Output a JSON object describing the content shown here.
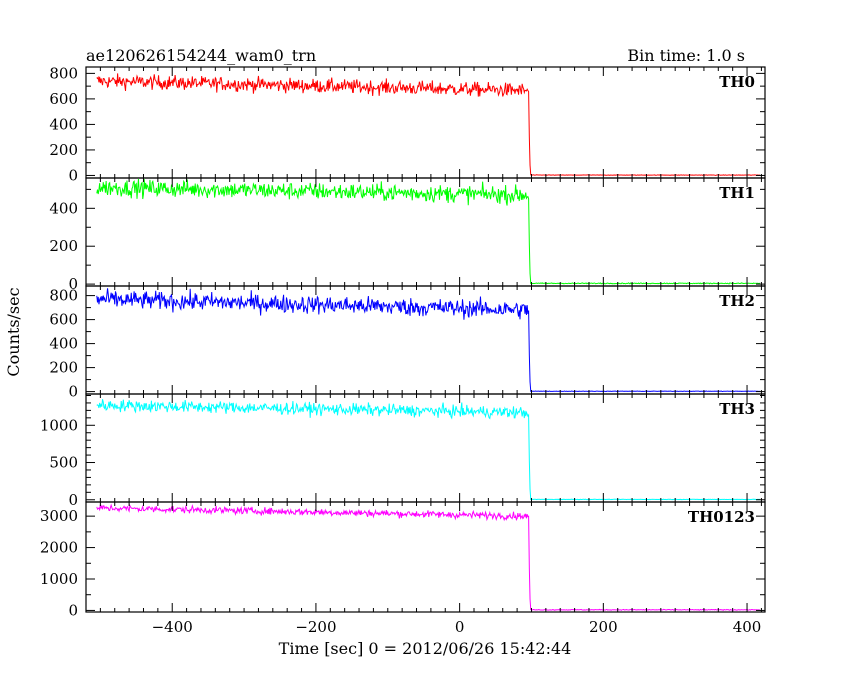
{
  "header": {
    "title": "ae120626154244_wam0_trn",
    "bin_time": "Bin time: 1.0 s"
  },
  "chart_data": {
    "type": "line",
    "xlabel": "Time [sec] 0 = 2012/06/26 15:42:44",
    "ylabel": "Counts/sec",
    "xlim": [
      -520,
      425
    ],
    "x_ticks": [
      -400,
      -200,
      0,
      200,
      400
    ],
    "x_tick_labels": [
      "−400",
      "−200",
      "0",
      "200",
      "400"
    ],
    "x_minor_step": 20,
    "trigger_time": 97,
    "data_range": [
      -505,
      418
    ],
    "panels": [
      {
        "name": "TH0",
        "color": "#ff0000",
        "ylim": [
          -20,
          850
        ],
        "ticks": [
          0,
          200,
          400,
          600,
          800
        ],
        "minor_step": 100,
        "start": 740,
        "end": 665,
        "noise": 55,
        "after": 3
      },
      {
        "name": "TH1",
        "color": "#00ff00",
        "ylim": [
          -10,
          560
        ],
        "ticks": [
          0,
          200,
          400
        ],
        "minor_step": 100,
        "start": 510,
        "end": 470,
        "noise": 45,
        "after": 4
      },
      {
        "name": "TH2",
        "color": "#0000ff",
        "ylim": [
          -20,
          880
        ],
        "ticks": [
          0,
          200,
          400,
          600,
          800
        ],
        "minor_step": 100,
        "start": 770,
        "end": 680,
        "noise": 75,
        "after": 3
      },
      {
        "name": "TH3",
        "color": "#00ffff",
        "ylim": [
          -30,
          1420
        ],
        "ticks": [
          0,
          500,
          1000
        ],
        "minor_step": 100,
        "start": 1270,
        "end": 1170,
        "noise": 80,
        "after": 5
      },
      {
        "name": "TH0123",
        "color": "#ff00ff",
        "ylim": [
          -50,
          3450
        ],
        "ticks": [
          0,
          1000,
          2000,
          3000
        ],
        "minor_step": 500,
        "start": 3260,
        "end": 3000,
        "noise": 110,
        "after": 20
      }
    ]
  }
}
